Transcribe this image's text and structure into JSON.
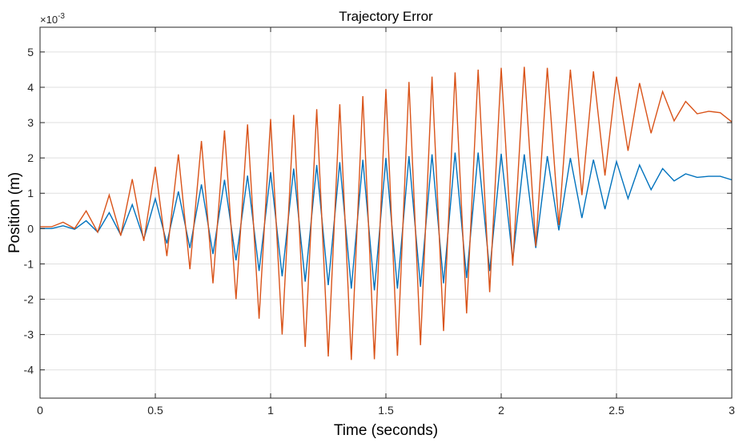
{
  "chart_data": {
    "type": "line",
    "title": "Trajectory Error",
    "xlabel": "Time (seconds)",
    "ylabel": "Position (m)",
    "y_exponent_label": "×10",
    "y_exponent_power": "-3",
    "xlim": [
      0,
      3
    ],
    "ylim": [
      -4.8,
      5.7
    ],
    "x_ticks": [
      "0",
      "0.5",
      "1",
      "1.5",
      "2",
      "2.5",
      "3"
    ],
    "x_tick_values": [
      0,
      0.5,
      1,
      1.5,
      2,
      2.5,
      3
    ],
    "y_ticks": [
      "-4",
      "-3",
      "-2",
      "-1",
      "0",
      "1",
      "2",
      "3",
      "4",
      "5"
    ],
    "y_tick_values": [
      -4,
      -3,
      -2,
      -1,
      0,
      1,
      2,
      3,
      4,
      5
    ],
    "grid": true,
    "box": true,
    "series": [
      {
        "color": "#0072BD",
        "x": [
          0,
          0.05,
          0.1,
          0.15,
          0.2,
          0.25,
          0.3,
          0.35,
          0.4,
          0.45,
          0.5,
          0.55,
          0.6,
          0.65,
          0.7,
          0.75,
          0.8,
          0.85,
          0.9,
          0.95,
          1.0,
          1.05,
          1.1,
          1.15,
          1.2,
          1.25,
          1.3,
          1.35,
          1.4,
          1.45,
          1.5,
          1.55,
          1.6,
          1.65,
          1.7,
          1.75,
          1.8,
          1.85,
          1.9,
          1.95,
          2.0,
          2.05,
          2.1,
          2.15,
          2.2,
          2.25,
          2.3,
          2.35,
          2.4,
          2.45,
          2.5,
          2.55,
          2.6,
          2.65,
          2.7,
          2.75,
          2.8,
          2.85,
          2.9,
          2.95,
          3.0
        ],
        "y": [
          0,
          0,
          0.08,
          -0.02,
          0.22,
          -0.1,
          0.45,
          -0.18,
          0.68,
          -0.3,
          0.85,
          -0.42,
          1.05,
          -0.55,
          1.25,
          -0.72,
          1.38,
          -0.9,
          1.5,
          -1.2,
          1.6,
          -1.35,
          1.7,
          -1.5,
          1.8,
          -1.6,
          1.88,
          -1.7,
          1.95,
          -1.75,
          2.0,
          -1.7,
          2.05,
          -1.65,
          2.1,
          -1.55,
          2.15,
          -1.4,
          2.15,
          -1.2,
          2.12,
          -0.9,
          2.1,
          -0.55,
          2.05,
          -0.05,
          2.0,
          0.3,
          1.95,
          0.55,
          1.9,
          0.85,
          1.8,
          1.1,
          1.7,
          1.35,
          1.55,
          1.45,
          1.48,
          1.48,
          1.38
        ]
      },
      {
        "color": "#D95319",
        "x": [
          0,
          0.05,
          0.1,
          0.15,
          0.2,
          0.25,
          0.3,
          0.35,
          0.4,
          0.45,
          0.5,
          0.55,
          0.6,
          0.65,
          0.7,
          0.75,
          0.8,
          0.85,
          0.9,
          0.95,
          1.0,
          1.05,
          1.1,
          1.15,
          1.2,
          1.25,
          1.3,
          1.35,
          1.4,
          1.45,
          1.5,
          1.55,
          1.6,
          1.65,
          1.7,
          1.75,
          1.8,
          1.85,
          1.9,
          1.95,
          2.0,
          2.05,
          2.1,
          2.15,
          2.2,
          2.25,
          2.3,
          2.35,
          2.4,
          2.45,
          2.5,
          2.55,
          2.6,
          2.65,
          2.7,
          2.75,
          2.8,
          2.85,
          2.9,
          2.95,
          3.0
        ],
        "y": [
          0.05,
          0.05,
          0.18,
          0,
          0.5,
          -0.1,
          0.95,
          -0.2,
          1.4,
          -0.35,
          1.75,
          -0.78,
          2.1,
          -1.15,
          2.48,
          -1.55,
          2.78,
          -2.0,
          2.95,
          -2.55,
          3.1,
          -3.0,
          3.22,
          -3.35,
          3.38,
          -3.62,
          3.52,
          -3.72,
          3.75,
          -3.7,
          3.95,
          -3.6,
          4.15,
          -3.3,
          4.3,
          -2.9,
          4.42,
          -2.4,
          4.5,
          -1.8,
          4.55,
          -1.05,
          4.58,
          -0.5,
          4.55,
          0.1,
          4.5,
          0.95,
          4.45,
          1.5,
          4.3,
          2.2,
          4.12,
          2.7,
          3.88,
          3.05,
          3.6,
          3.25,
          3.32,
          3.28,
          3.02
        ]
      }
    ]
  }
}
